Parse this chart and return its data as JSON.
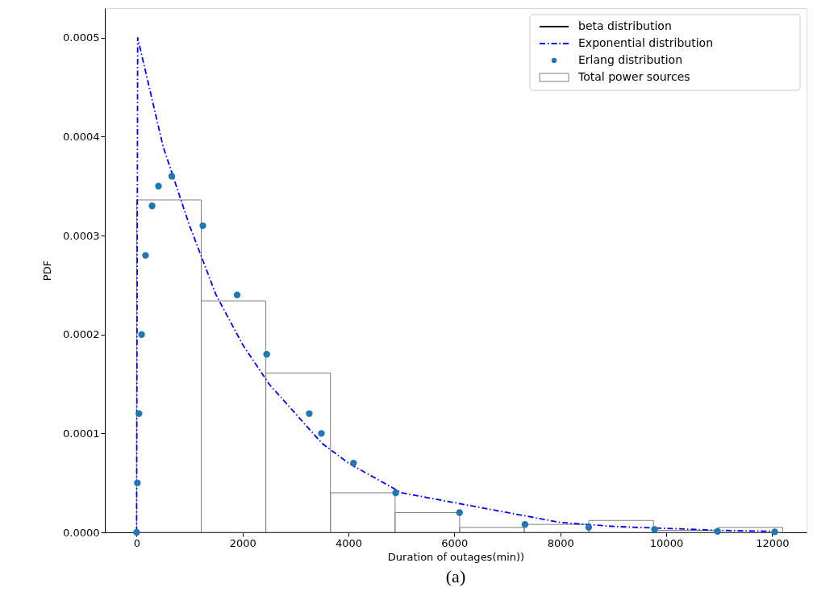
{
  "chart_data": {
    "type": "line",
    "xlabel": "Duration of outages(min))",
    "ylabel": "PDF",
    "annotations": [
      "(a)"
    ],
    "xlim": [
      -600,
      12650
    ],
    "ylim": [
      0,
      0.00053
    ],
    "xticks": [
      0,
      2000,
      4000,
      6000,
      8000,
      10000,
      12000
    ],
    "yticks": [
      {
        "value": 0,
        "label": "0.0000"
      },
      {
        "value": 0.0001,
        "label": "0.0001"
      },
      {
        "value": 0.0002,
        "label": "0.0002"
      },
      {
        "value": 0.0003,
        "label": "0.0003"
      },
      {
        "value": 0.0004,
        "label": "0.0004"
      },
      {
        "value": 0.0005,
        "label": "0.0005"
      }
    ],
    "grid": false,
    "legend": "top right",
    "series": [
      {
        "name": "beta distribution",
        "type": "line",
        "line_style": "solid",
        "color": "#000000"
      },
      {
        "name": "Exponential distribution",
        "line_style": "dashdot",
        "color": "#0000ff",
        "x": [
          0,
          20,
          500,
          1000,
          1500,
          2000,
          2500,
          3000,
          3500,
          4000,
          5000,
          6000,
          7000,
          8000,
          9000,
          10000,
          11000,
          12000
        ],
        "values": [
          0,
          0.0005,
          0.00039,
          0.00031,
          0.00024,
          0.00019,
          0.00015,
          0.00012,
          9e-05,
          7e-05,
          4e-05,
          3e-05,
          2e-05,
          1e-05,
          6e-06,
          4e-06,
          2e-06,
          1e-06
        ]
      },
      {
        "name": "Erlang distribution",
        "type": "scatter",
        "marker": "circle",
        "color": "#1f77b4",
        "x": [
          0,
          14,
          45,
          94,
          168,
          292,
          413,
          664,
          1250,
          1898,
          2456,
          3260,
          3489,
          4095,
          4892,
          6097,
          7333,
          8536,
          9780,
          10970,
          12050
        ],
        "values": [
          0,
          5e-05,
          0.00012,
          0.0002,
          0.00028,
          0.00033,
          0.00035,
          0.00036,
          0.00031,
          0.00024,
          0.00018,
          0.00012,
          0.0001,
          7e-05,
          4e-05,
          2e-05,
          8e-06,
          5e-06,
          3e-06,
          1e-06,
          5e-07
        ]
      },
      {
        "name": "Total power sources",
        "type": "histogram",
        "color": "#808080",
        "bins": [
          0,
          1220,
          2440,
          3660,
          4880,
          6100,
          7320,
          8540,
          9760,
          10980,
          12200
        ],
        "values": [
          0.000336,
          0.000234,
          0.000161,
          4e-05,
          2e-05,
          5e-06,
          8e-06,
          1.2e-05,
          2e-06,
          5e-06
        ]
      }
    ]
  }
}
